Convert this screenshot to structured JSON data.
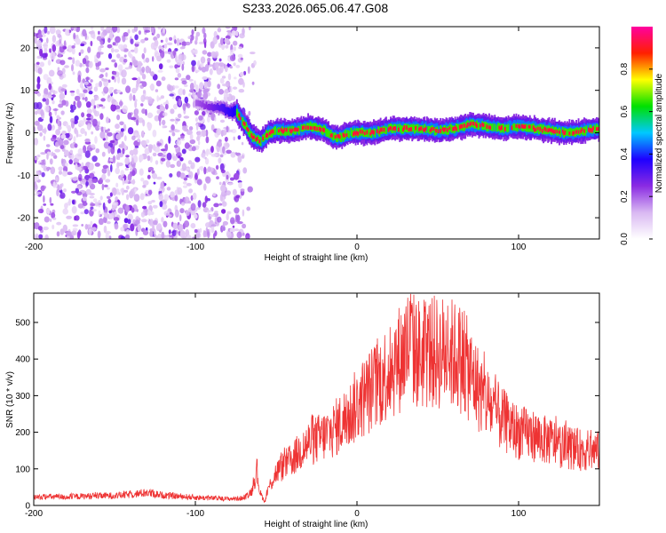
{
  "title": "S233.2026.065.06.47.G08",
  "chart_data": [
    {
      "type": "heatmap",
      "xlabel": "Height of straight line (km)",
      "ylabel": "Frequency (Hz)",
      "xlim": [
        -200,
        150
      ],
      "ylim": [
        -25,
        25
      ],
      "xticks": [
        -200,
        -100,
        0,
        100
      ],
      "yticks": [
        -20,
        -10,
        0,
        10,
        20
      ],
      "colorbar": {
        "label": "Normalized spectral amplitude",
        "range": [
          0,
          1
        ],
        "ticks": [
          0,
          0.2,
          0.4,
          0.6,
          0.8
        ],
        "colors": [
          "#ffffff",
          "#d9b8f2",
          "#8a2be2",
          "#1e00ff",
          "#00c8ff",
          "#00e000",
          "#ffff00",
          "#ff2000",
          "#ff00a0"
        ]
      },
      "noise_region_x": [
        -200,
        -75
      ],
      "ridge": {
        "x": [
          -100,
          -90,
          -85,
          -80,
          -75,
          -70,
          -65,
          -60,
          -55,
          -50,
          -40,
          -30,
          -20,
          -15,
          -10,
          -5,
          0,
          10,
          20,
          30,
          40,
          50,
          60,
          70,
          80,
          90,
          100,
          110,
          120,
          130,
          140,
          150
        ],
        "freq": [
          7,
          6,
          6,
          5,
          5,
          2,
          -1,
          -2,
          0,
          0.5,
          0.5,
          1.5,
          0.5,
          -1,
          -1,
          0,
          0,
          0,
          1,
          1,
          1,
          0.5,
          1,
          2,
          1.5,
          1,
          1.5,
          1,
          0.5,
          0,
          0.5,
          1
        ]
      }
    },
    {
      "type": "line",
      "xlabel": "Height of straight line (km)",
      "ylabel": "SNR (10 * v/v)",
      "xlim": [
        -200,
        150
      ],
      "ylim": [
        0,
        580
      ],
      "xticks": [
        -200,
        -100,
        0,
        100
      ],
      "yticks": [
        0,
        100,
        200,
        300,
        400,
        500
      ],
      "series": [
        {
          "color": "#ee3333",
          "x": [
            -200,
            -190,
            -180,
            -170,
            -160,
            -150,
            -140,
            -130,
            -120,
            -110,
            -100,
            -90,
            -80,
            -70,
            -65,
            -62,
            -60,
            -57,
            -55,
            -50,
            -45,
            -40,
            -35,
            -30,
            -25,
            -20,
            -15,
            -10,
            -5,
            0,
            5,
            10,
            15,
            20,
            25,
            30,
            33,
            35,
            40,
            45,
            50,
            55,
            60,
            65,
            70,
            75,
            80,
            85,
            90,
            95,
            100,
            105,
            110,
            115,
            120,
            125,
            130,
            135,
            140,
            145,
            150
          ],
          "y": [
            22,
            24,
            23,
            25,
            26,
            27,
            30,
            35,
            28,
            25,
            22,
            20,
            18,
            20,
            40,
            95,
            35,
            10,
            45,
            90,
            110,
            125,
            150,
            170,
            180,
            190,
            205,
            225,
            245,
            275,
            300,
            320,
            345,
            370,
            395,
            420,
            450,
            425,
            410,
            420,
            415,
            420,
            410,
            400,
            360,
            320,
            285,
            255,
            235,
            215,
            200,
            195,
            190,
            180,
            175,
            165,
            160,
            155,
            150,
            150,
            148
          ]
        }
      ]
    }
  ]
}
